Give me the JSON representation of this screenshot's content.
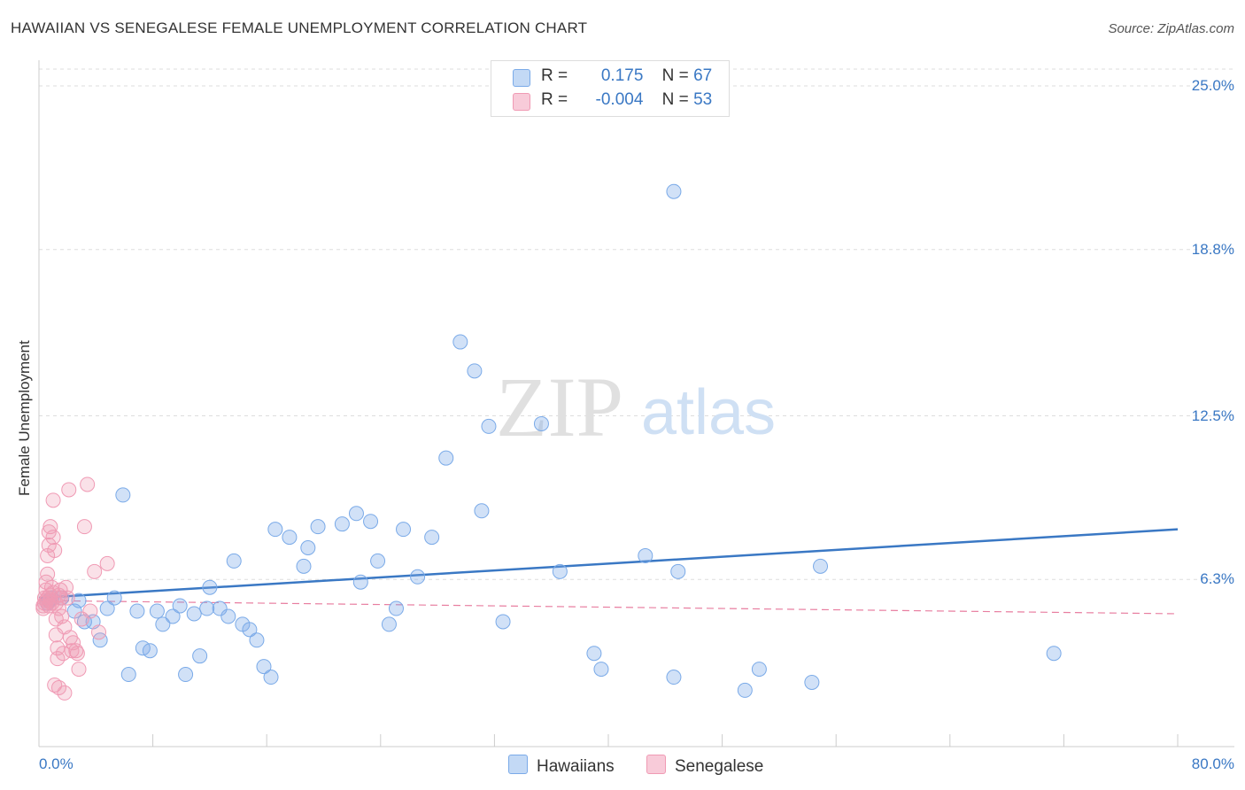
{
  "title": "HAWAIIAN VS SENEGALESE FEMALE UNEMPLOYMENT CORRELATION CHART",
  "source": "Source: ZipAtlas.com",
  "watermark": {
    "zip": "ZIP",
    "atlas": "atlas"
  },
  "legend": {
    "r_label": "R =",
    "n_label": "N =",
    "series": [
      {
        "name": "Hawaiians",
        "r": "0.175",
        "n": "67",
        "color": "#7aaae8"
      },
      {
        "name": "Senegalese",
        "r": "-0.004",
        "n": "53",
        "color": "#f09ab4"
      }
    ]
  },
  "chart_data": {
    "type": "scatter",
    "title": "HAWAIIAN VS SENEGALESE FEMALE UNEMPLOYMENT CORRELATION CHART",
    "xlabel": "",
    "ylabel": "Female Unemployment",
    "xlim": [
      0,
      80
    ],
    "ylim": [
      0,
      25
    ],
    "x_tick_labels": [
      "0.0%",
      "80.0%"
    ],
    "y_ticks": [
      6.3,
      12.5,
      18.8,
      25.0
    ],
    "y_tick_labels": [
      "6.3%",
      "12.5%",
      "18.8%",
      "25.0%"
    ],
    "grid": true,
    "series": [
      {
        "name": "Hawaiians",
        "color": "#3a78c4",
        "trend": {
          "x": [
            0,
            80
          ],
          "y": [
            5.6,
            8.2
          ]
        },
        "points": [
          [
            0.7,
            5.5
          ],
          [
            0.9,
            5.6
          ],
          [
            1.6,
            5.6
          ],
          [
            2.5,
            5.1
          ],
          [
            2.8,
            5.5
          ],
          [
            3.2,
            4.7
          ],
          [
            3.8,
            4.7
          ],
          [
            4.3,
            4.0
          ],
          [
            4.8,
            5.2
          ],
          [
            5.3,
            5.6
          ],
          [
            5.9,
            9.5
          ],
          [
            6.3,
            2.7
          ],
          [
            6.9,
            5.1
          ],
          [
            7.3,
            3.7
          ],
          [
            7.8,
            3.6
          ],
          [
            8.3,
            5.1
          ],
          [
            8.7,
            4.6
          ],
          [
            9.4,
            4.9
          ],
          [
            9.9,
            5.3
          ],
          [
            10.3,
            2.7
          ],
          [
            10.9,
            5.0
          ],
          [
            11.3,
            3.4
          ],
          [
            11.8,
            5.2
          ],
          [
            12.0,
            6.0
          ],
          [
            12.7,
            5.2
          ],
          [
            13.3,
            4.9
          ],
          [
            13.7,
            7.0
          ],
          [
            14.3,
            4.6
          ],
          [
            14.8,
            4.4
          ],
          [
            15.3,
            4.0
          ],
          [
            15.8,
            3.0
          ],
          [
            16.3,
            2.6
          ],
          [
            16.6,
            8.2
          ],
          [
            17.6,
            7.9
          ],
          [
            18.6,
            6.8
          ],
          [
            18.9,
            7.5
          ],
          [
            19.6,
            8.3
          ],
          [
            21.3,
            8.4
          ],
          [
            22.3,
            8.8
          ],
          [
            22.6,
            6.2
          ],
          [
            23.3,
            8.5
          ],
          [
            23.8,
            7.0
          ],
          [
            24.6,
            4.6
          ],
          [
            25.1,
            5.2
          ],
          [
            25.6,
            8.2
          ],
          [
            26.6,
            6.4
          ],
          [
            27.6,
            7.9
          ],
          [
            28.6,
            10.9
          ],
          [
            29.6,
            15.3
          ],
          [
            30.6,
            14.2
          ],
          [
            31.1,
            8.9
          ],
          [
            31.6,
            12.1
          ],
          [
            32.6,
            4.7
          ],
          [
            35.3,
            12.2
          ],
          [
            36.6,
            6.6
          ],
          [
            39.0,
            3.5
          ],
          [
            39.5,
            2.9
          ],
          [
            42.6,
            7.2
          ],
          [
            44.6,
            21.0
          ],
          [
            44.6,
            2.6
          ],
          [
            44.9,
            6.6
          ],
          [
            49.6,
            2.1
          ],
          [
            50.6,
            2.9
          ],
          [
            54.3,
            2.4
          ],
          [
            54.9,
            6.8
          ],
          [
            71.3,
            3.5
          ],
          [
            0.6,
            5.4
          ]
        ]
      },
      {
        "name": "Senegalese",
        "color": "#e87ea0",
        "trend": {
          "x": [
            0,
            80
          ],
          "y": [
            5.5,
            5.0
          ]
        },
        "points": [
          [
            0.3,
            5.3
          ],
          [
            0.4,
            5.6
          ],
          [
            0.5,
            5.9
          ],
          [
            0.5,
            6.2
          ],
          [
            0.6,
            6.5
          ],
          [
            0.6,
            7.2
          ],
          [
            0.7,
            7.6
          ],
          [
            0.7,
            8.1
          ],
          [
            0.8,
            8.3
          ],
          [
            0.8,
            5.5
          ],
          [
            0.9,
            5.4
          ],
          [
            1.0,
            9.3
          ],
          [
            1.0,
            7.9
          ],
          [
            1.1,
            7.4
          ],
          [
            1.2,
            4.8
          ],
          [
            1.2,
            4.2
          ],
          [
            1.3,
            3.7
          ],
          [
            1.3,
            3.3
          ],
          [
            1.4,
            5.7
          ],
          [
            1.4,
            5.2
          ],
          [
            1.5,
            5.6
          ],
          [
            1.5,
            5.9
          ],
          [
            1.6,
            4.9
          ],
          [
            1.7,
            3.5
          ],
          [
            1.8,
            4.5
          ],
          [
            1.9,
            6.0
          ],
          [
            2.0,
            5.6
          ],
          [
            2.1,
            9.7
          ],
          [
            2.2,
            4.1
          ],
          [
            2.3,
            3.6
          ],
          [
            2.4,
            3.9
          ],
          [
            2.6,
            3.6
          ],
          [
            2.7,
            3.5
          ],
          [
            2.8,
            2.9
          ],
          [
            3.0,
            4.8
          ],
          [
            3.2,
            8.3
          ],
          [
            3.4,
            9.9
          ],
          [
            3.6,
            5.1
          ],
          [
            3.9,
            6.6
          ],
          [
            4.2,
            4.3
          ],
          [
            4.8,
            6.9
          ],
          [
            1.1,
            2.3
          ],
          [
            1.4,
            2.2
          ],
          [
            1.8,
            2.0
          ],
          [
            0.3,
            5.2
          ],
          [
            0.4,
            5.4
          ],
          [
            0.5,
            5.5
          ],
          [
            0.6,
            5.6
          ],
          [
            0.7,
            5.3
          ],
          [
            0.8,
            5.7
          ],
          [
            0.9,
            6.0
          ],
          [
            1.0,
            5.8
          ],
          [
            1.2,
            5.4
          ]
        ]
      }
    ]
  }
}
